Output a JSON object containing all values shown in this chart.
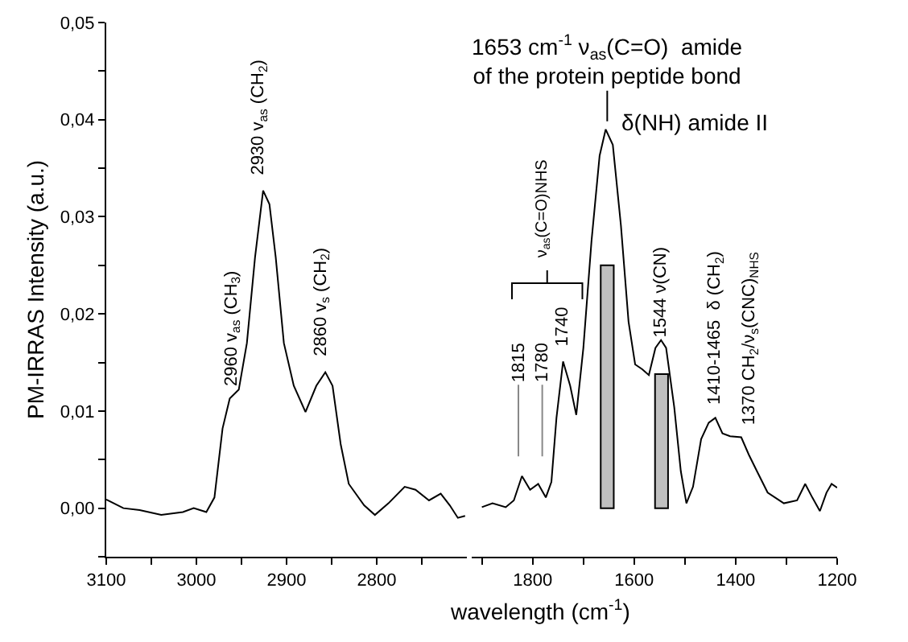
{
  "chart_data": [
    {
      "type": "line",
      "ylabel": "PM-IRRAS Intensity (a.u.)",
      "x": [
        3100,
        3081,
        3063,
        3039,
        3015,
        3003,
        2989,
        2980,
        2971,
        2963,
        2953,
        2944,
        2935,
        2926,
        2919,
        2912,
        2903,
        2892,
        2879,
        2867,
        2857,
        2849,
        2840,
        2831,
        2814,
        2802,
        2787,
        2769,
        2757,
        2742,
        2729,
        2719,
        2710,
        2702
      ],
      "series": [
        {
          "color": "#000000",
          "values": [
            0.0009,
            0.0,
            -0.0002,
            -0.0007,
            -0.0004,
            0.0,
            -0.0004,
            0.0011,
            0.0082,
            0.0113,
            0.0122,
            0.017,
            0.0258,
            0.0327,
            0.0313,
            0.0258,
            0.017,
            0.0126,
            0.0099,
            0.0126,
            0.014,
            0.0126,
            0.0066,
            0.0025,
            0.0003,
            -0.0007,
            0.0005,
            0.0022,
            0.0019,
            0.0008,
            0.0015,
            0.0003,
            -0.001,
            -0.0008
          ]
        }
      ],
      "xlim": [
        3100,
        2700
      ],
      "xticks": [
        3100,
        {
          "value": 3050,
          "label": null
        },
        3000,
        {
          "value": 2950,
          "label": null
        },
        2900,
        {
          "value": 2850,
          "label": null
        },
        2800,
        {
          "value": 2750,
          "label": null
        }
      ],
      "ylim": [
        -0.005,
        0.05
      ],
      "yticks": [
        {
          "value": -0.005,
          "label": null
        },
        {
          "value": 0,
          "label": "0,00"
        },
        {
          "value": 0.005,
          "label": null
        },
        {
          "value": 0.01,
          "label": "0,01"
        },
        {
          "value": 0.015,
          "label": null
        },
        {
          "value": 0.02,
          "label": "0,02"
        },
        {
          "value": 0.025,
          "label": null
        },
        {
          "value": 0.03,
          "label": "0,03"
        },
        {
          "value": 0.035,
          "label": null
        },
        {
          "value": 0.04,
          "label": "0,04"
        },
        {
          "value": 0.045,
          "label": null
        },
        {
          "value": 0.05,
          "label": "0,05"
        }
      ],
      "annotations": [
        {
          "text": "2960 v$_{as}$ (CH$_{3}$)",
          "x": 2960,
          "y": 0.0118
        },
        {
          "text": "2930 v$_{as}$ (CH$_{2}$)",
          "x": 2930,
          "y": 0.0335
        },
        {
          "text": "2860 v$_{s}$ (CH$_{2}$)",
          "x": 2860,
          "y": 0.0148
        }
      ]
    },
    {
      "type": "line",
      "xlabel": "wavelength (cm$^{-1}$)",
      "x": [
        1900,
        1879,
        1853,
        1837,
        1821,
        1805,
        1789,
        1774,
        1763,
        1753,
        1740,
        1726,
        1714,
        1700,
        1684,
        1668,
        1656,
        1642,
        1626,
        1611,
        1598,
        1584,
        1571,
        1558,
        1547,
        1537,
        1521,
        1508,
        1497,
        1484,
        1468,
        1453,
        1440,
        1426,
        1411,
        1389,
        1374,
        1358,
        1337,
        1305,
        1279,
        1263,
        1249,
        1234,
        1221,
        1211,
        1200
      ],
      "series": [
        {
          "color": "#000000",
          "values": [
            0.0001,
            0.0005,
            0.0001,
            0.0008,
            0.0033,
            0.0019,
            0.0025,
            0.0011,
            0.0027,
            0.0093,
            0.0151,
            0.0126,
            0.0096,
            0.0165,
            0.0275,
            0.0363,
            0.039,
            0.0374,
            0.0291,
            0.0192,
            0.0148,
            0.0143,
            0.0137,
            0.0165,
            0.0173,
            0.0165,
            0.0104,
            0.0038,
            0.0005,
            0.0022,
            0.0071,
            0.0088,
            0.0093,
            0.0077,
            0.0074,
            0.0073,
            0.0055,
            0.0038,
            0.0016,
            0.0005,
            0.0008,
            0.0025,
            0.0011,
            -0.0003,
            0.0016,
            0.0025,
            0.0021
          ]
        },
        {
          "type": "bar",
          "x": [
            1653,
            1546
          ],
          "values": [
            0.025,
            0.0138
          ],
          "color": "#c0c0c0"
        }
      ],
      "xlim": [
        1920,
        1200
      ],
      "xticks": [
        {
          "value": 1900,
          "label": null
        },
        1800,
        {
          "value": 1700,
          "label": null
        },
        1600,
        {
          "value": 1500,
          "label": null
        },
        1400,
        {
          "value": 1300,
          "label": null
        },
        1200
      ],
      "ylim": [
        -0.005,
        0.05
      ],
      "tick_labels": "x",
      "annotations": [
        {
          "text": "1653 cm$^{-1}$ ν$_{as}$(C=O)  amide\nof the protein peptide bond",
          "x": 1653,
          "y": 0.0395
        },
        "δ(NH) amide II",
        "ν$_{as}$(C=O)NHS",
        "1815",
        "1780",
        {
          "text": "1740",
          "x": 1740,
          "y": 0.0158
        },
        "1544 ν(CN)",
        {
          "text": "1410-1465  δ (CH$_{2}$)",
          "x": 1440,
          "y": 0.0098
        },
        "1370 CH$_{2}$/ν$_{s}$(CNC)$_{NHS}$"
      ]
    }
  ]
}
